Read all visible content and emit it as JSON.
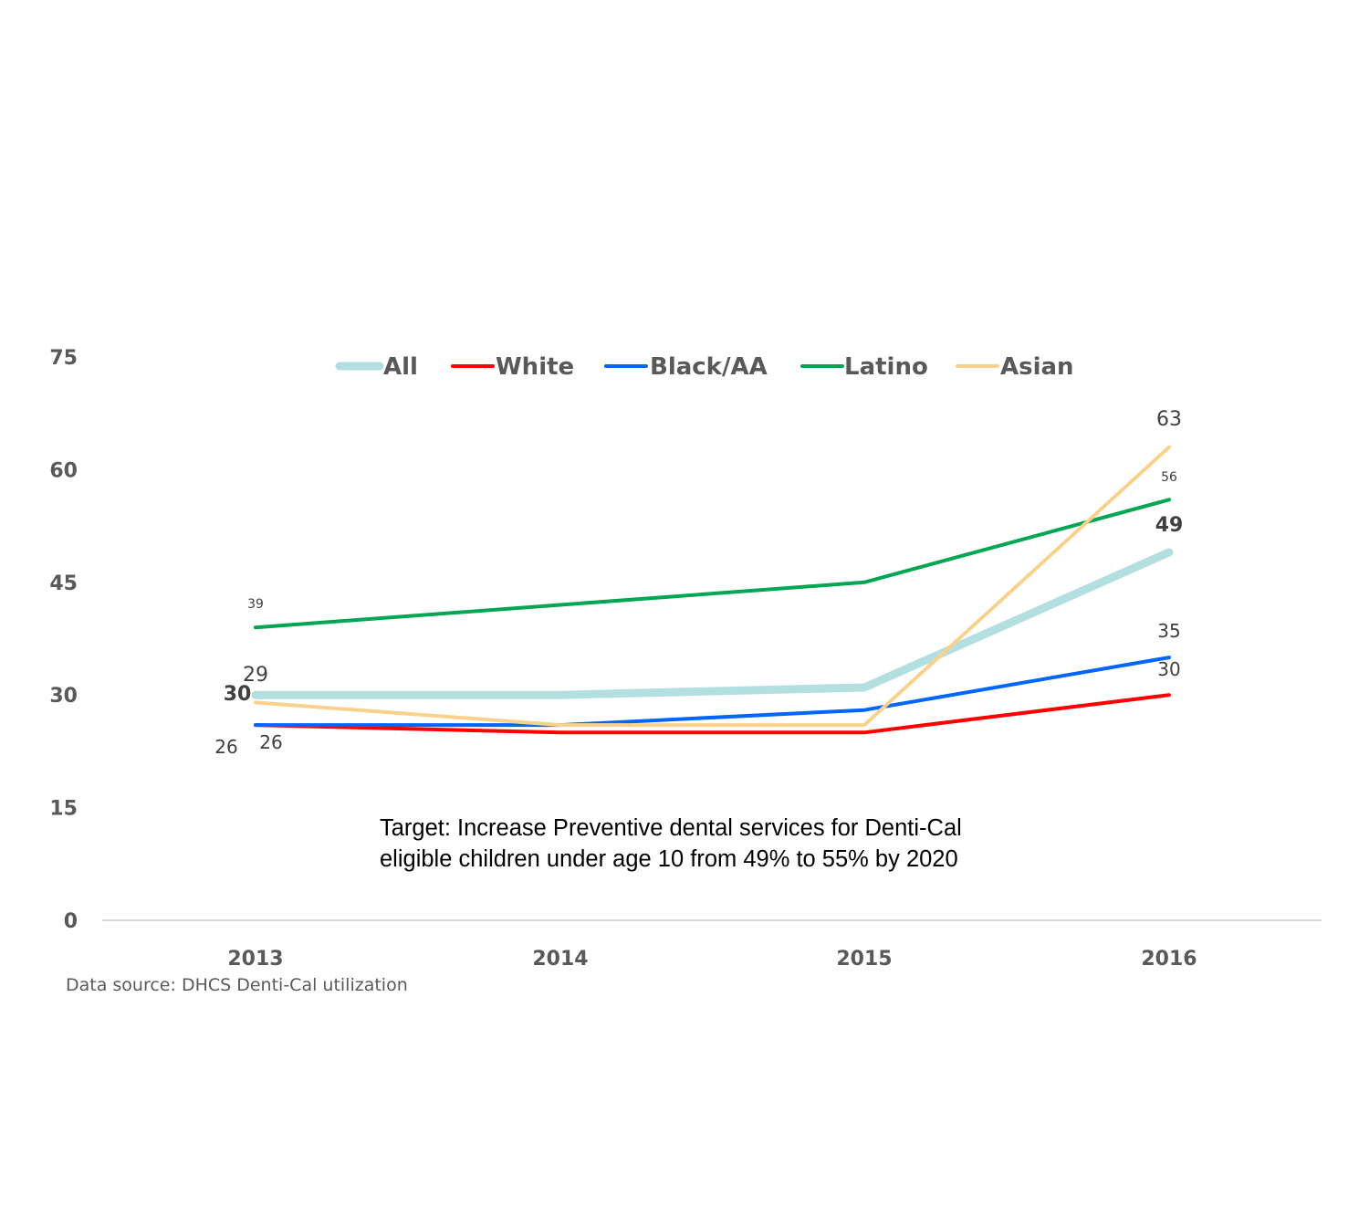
{
  "chart_data": {
    "type": "line",
    "categories": [
      "2013",
      "2014",
      "2015",
      "2016"
    ],
    "ylim": [
      0,
      75
    ],
    "yticks": [
      "0",
      "15",
      "30",
      "45",
      "60",
      "75"
    ],
    "grid": false,
    "legend_position": "top",
    "series": [
      {
        "name": "All",
        "color": "#B4DFE0",
        "values": [
          30,
          30,
          31,
          49
        ]
      },
      {
        "name": "White",
        "color": "#FF0000",
        "values": [
          26,
          25,
          25,
          30
        ]
      },
      {
        "name": "Black/AA",
        "color": "#0066FF",
        "values": [
          26,
          26,
          28,
          35
        ]
      },
      {
        "name": "Latino",
        "color": "#00A651",
        "values": [
          39,
          42,
          45,
          56
        ]
      },
      {
        "name": "Asian",
        "color": "#F8D28C",
        "values": [
          29,
          26,
          26,
          63
        ]
      }
    ],
    "data_labels": [
      {
        "series": "All",
        "category": "2013",
        "text": "30"
      },
      {
        "series": "All",
        "category": "2016",
        "text": "49"
      },
      {
        "series": "White",
        "category": "2013",
        "text": "26"
      },
      {
        "series": "White",
        "category": "2016",
        "text": "30"
      },
      {
        "series": "Black/AA",
        "category": "2013",
        "text": "26"
      },
      {
        "series": "Black/AA",
        "category": "2016",
        "text": "35"
      },
      {
        "series": "Latino",
        "category": "2013",
        "text": "39"
      },
      {
        "series": "Latino",
        "category": "2016",
        "text": "56"
      },
      {
        "series": "Asian",
        "category": "2013",
        "text": "29"
      },
      {
        "series": "Asian",
        "category": "2016",
        "text": "63"
      }
    ]
  },
  "annotation": "Target: Increase  Preventive dental services for Denti-Cal eligible children under age 10 from 49% to 55% by 2020",
  "source": "Data source: DHCS Denti-Cal utilization"
}
